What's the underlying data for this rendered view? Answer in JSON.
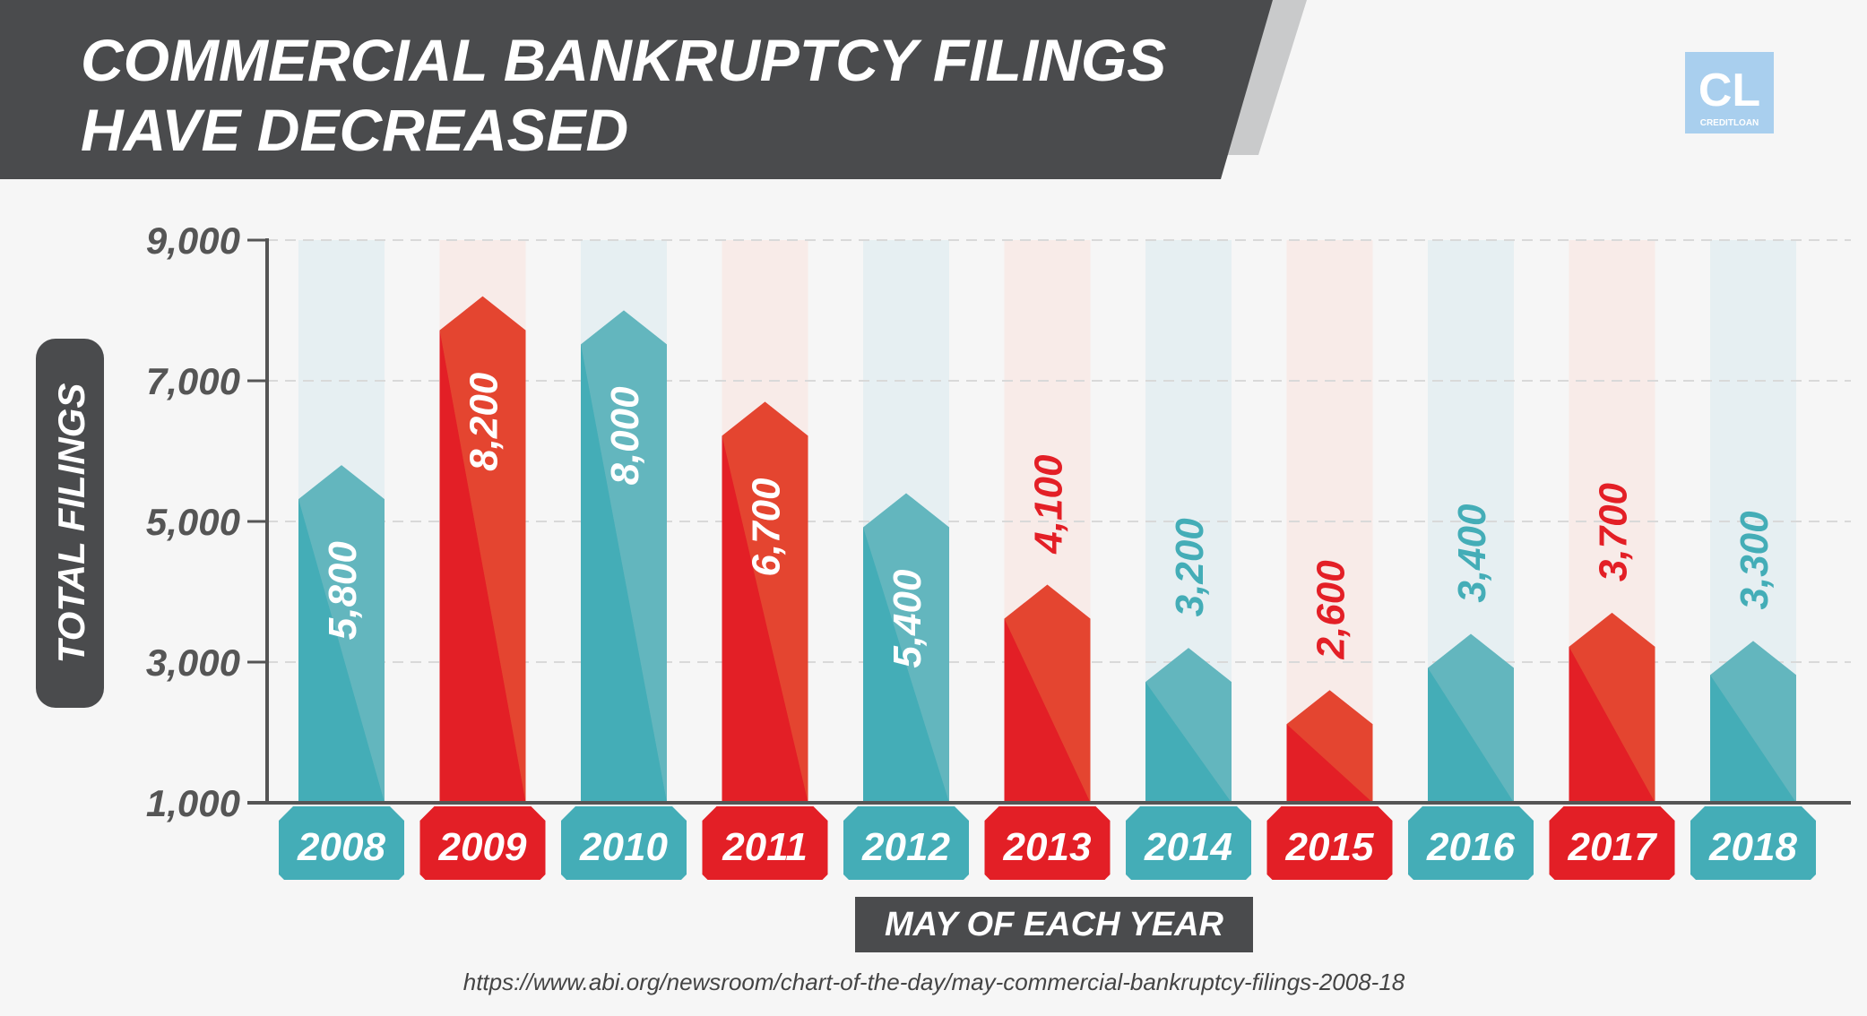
{
  "header": {
    "title_line1": "COMMERCIAL BANKRUPTCY FILINGS",
    "title_line2": "HAVE DECREASED"
  },
  "logo": {
    "letters": "CL",
    "brand": "CREDITLOAN"
  },
  "source": "https://www.abi.org/newsroom/chart-of-the-day/may-commercial-bankruptcy-filings-2008-18",
  "colors": {
    "teal": "#44adb7",
    "teal_light": "#63b6be",
    "red": "#e31f26",
    "red_light": "#e44530",
    "teal_bg": "#e6eff2",
    "red_bg": "#f8ebe8",
    "header_bg": "#4a4b4d",
    "axis": "#555555"
  },
  "chart_data": {
    "type": "bar",
    "categories": [
      "2008",
      "2009",
      "2010",
      "2011",
      "2012",
      "2013",
      "2014",
      "2015",
      "2016",
      "2017",
      "2018"
    ],
    "values": [
      5800,
      8200,
      8000,
      6700,
      5400,
      4100,
      3200,
      2600,
      3400,
      3700,
      3300
    ],
    "value_labels": [
      "5,800",
      "8,200",
      "8,000",
      "6,700",
      "5,400",
      "4,100",
      "3,200",
      "2,600",
      "3,400",
      "3,700",
      "3,300"
    ],
    "bar_colors": [
      "teal",
      "red",
      "teal",
      "red",
      "teal",
      "red",
      "teal",
      "red",
      "teal",
      "red",
      "teal"
    ],
    "ylabel": "TOTAL FILINGS",
    "xlabel": "MAY OF EACH YEAR",
    "ylim": [
      1000,
      9000
    ],
    "yticks": [
      1000,
      3000,
      5000,
      7000,
      9000
    ],
    "ytick_labels": [
      "1,000",
      "3,000",
      "5,000",
      "7,000",
      "9,000"
    ],
    "grid": true
  }
}
